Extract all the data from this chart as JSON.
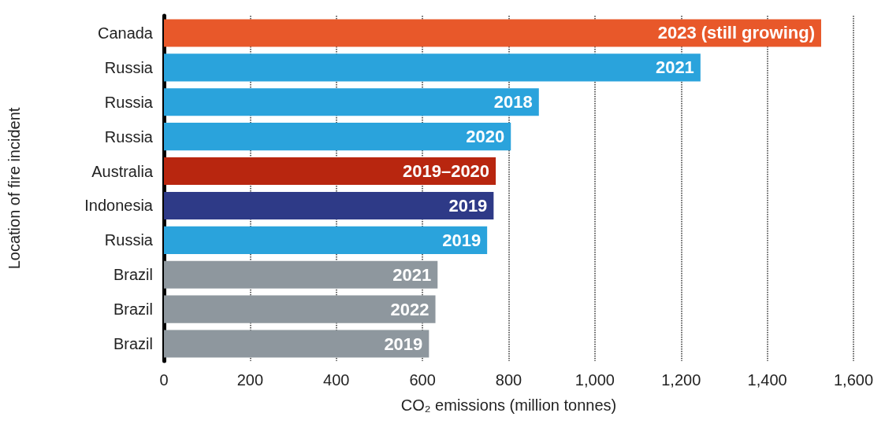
{
  "chart_data": {
    "type": "bar",
    "orientation": "horizontal",
    "xlabel": "CO₂ emissions (million tonnes)",
    "ylabel": "Location of fire incident",
    "categories": [
      "Canada",
      "Russia",
      "Russia",
      "Russia",
      "Australia",
      "Indonesia",
      "Russia",
      "Brazil",
      "Brazil",
      "Brazil"
    ],
    "values": [
      1525,
      1245,
      870,
      805,
      770,
      765,
      750,
      635,
      630,
      615
    ],
    "colors": [
      "#e8582a",
      "#2aa3dc",
      "#2aa3dc",
      "#2aa3dc",
      "#b8260f",
      "#2e3a87",
      "#2aa3dc",
      "#8e979e",
      "#8e979e",
      "#8e979e"
    ],
    "annotations": [
      "2023 (still growing)",
      "2021",
      "2018",
      "2020",
      "2019–2020",
      "2019",
      "2019",
      "2021",
      "2022",
      "2019"
    ],
    "xlim": [
      0,
      1600
    ],
    "xticks": [
      0,
      200,
      400,
      600,
      800,
      {
        "value": 1000,
        "label": "1,000"
      },
      {
        "value": 1200,
        "label": "1,200"
      },
      {
        "value": 1400,
        "label": "1,400"
      },
      {
        "value": 1600,
        "label": "1,600"
      }
    ],
    "grid": "x"
  }
}
